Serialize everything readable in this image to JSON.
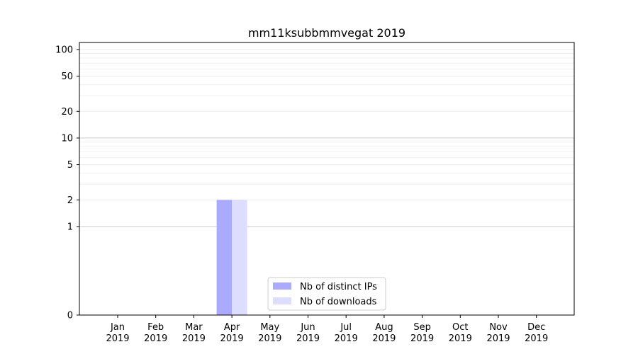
{
  "chart_data": {
    "type": "bar",
    "title": "mm11ksubbmmvegat 2019",
    "xlabel": "",
    "ylabel": "",
    "y_scale": "symlog",
    "ylim": [
      0,
      120
    ],
    "y_ticks": [
      {
        "value": 0,
        "label": "0"
      },
      {
        "value": 1,
        "label": "1"
      },
      {
        "value": 2,
        "label": "2"
      },
      {
        "value": 5,
        "label": "5"
      },
      {
        "value": 10,
        "label": "10"
      },
      {
        "value": 20,
        "label": "20"
      },
      {
        "value": 50,
        "label": "50"
      },
      {
        "value": 100,
        "label": "100"
      }
    ],
    "categories": [
      [
        "Jan",
        "2019"
      ],
      [
        "Feb",
        "2019"
      ],
      [
        "Mar",
        "2019"
      ],
      [
        "Apr",
        "2019"
      ],
      [
        "May",
        "2019"
      ],
      [
        "Jun",
        "2019"
      ],
      [
        "Jul",
        "2019"
      ],
      [
        "Aug",
        "2019"
      ],
      [
        "Sep",
        "2019"
      ],
      [
        "Oct",
        "2019"
      ],
      [
        "Nov",
        "2019"
      ],
      [
        "Dec",
        "2019"
      ]
    ],
    "series": [
      {
        "name": "Nb of distinct IPs",
        "color": "#aaaaff",
        "values": [
          0,
          0,
          0,
          2,
          0,
          0,
          0,
          0,
          0,
          0,
          0,
          0
        ]
      },
      {
        "name": "Nb of downloads",
        "color": "#ddddff",
        "values": [
          0,
          0,
          0,
          2,
          0,
          0,
          0,
          0,
          0,
          0,
          0,
          0
        ]
      }
    ],
    "legend_position": "lower-center",
    "grid": true
  }
}
